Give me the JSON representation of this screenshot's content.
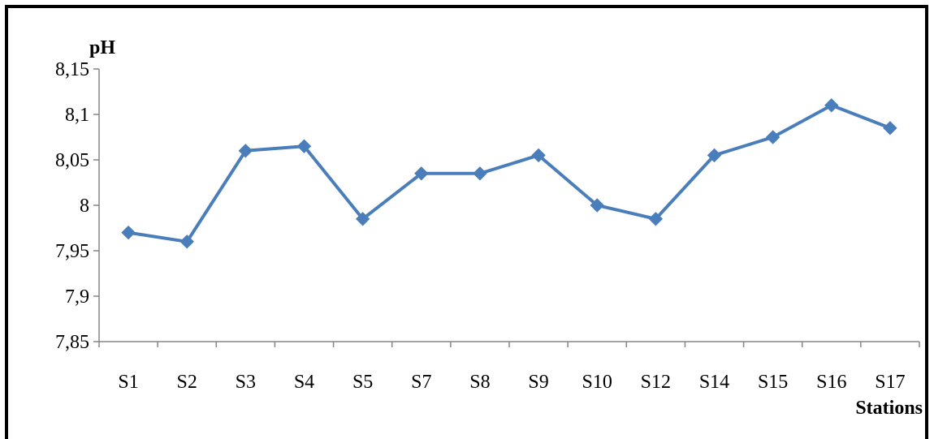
{
  "chart_data": {
    "type": "line",
    "ylabel": "pH",
    "xlabel": "Stations",
    "categories": [
      "S1",
      "S2",
      "S3",
      "S4",
      "S5",
      "S7",
      "S8",
      "S9",
      "S10",
      "S12",
      "S14",
      "S15",
      "S16",
      "S17"
    ],
    "series": [
      {
        "values": [
          7.97,
          7.96,
          8.06,
          8.065,
          7.985,
          8.035,
          8.035,
          8.055,
          8.0,
          7.985,
          8.055,
          8.075,
          8.11,
          8.085
        ],
        "color": "#4a7ebb",
        "marker": "diamond"
      }
    ],
    "ylim": [
      7.85,
      8.15
    ],
    "yticks": [
      "7,85",
      "7,9",
      "7,95",
      "8",
      "8,05",
      "8,1",
      "8,15"
    ],
    "grid": false,
    "legend": "none"
  }
}
